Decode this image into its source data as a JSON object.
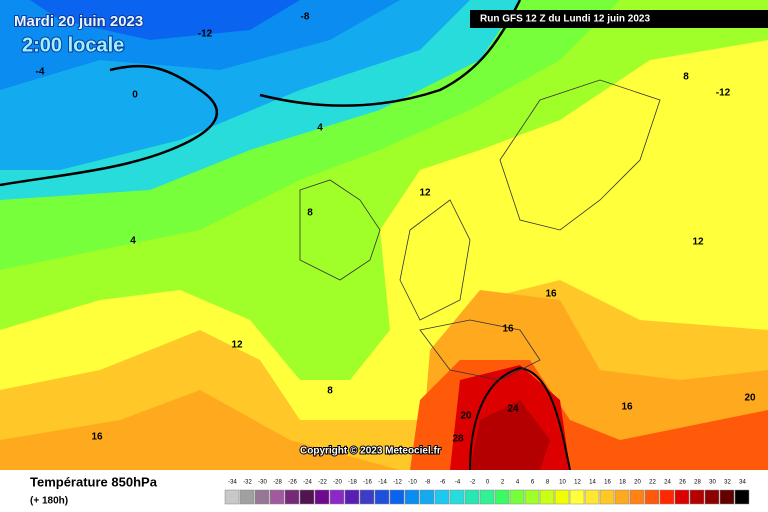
{
  "header": {
    "date": "Mardi 20 juin 2023",
    "time": "2:00 locale",
    "run": "Run GFS 12 Z du Lundi 12 juin 2023"
  },
  "copyright": "Copyright © 2023 Meteociel.fr",
  "footer": {
    "title": "Température 850hPa",
    "lead": "(+ 180h)"
  },
  "legend": {
    "values": [
      -34,
      -32,
      -30,
      -28,
      -26,
      -24,
      -22,
      -20,
      -18,
      -16,
      -14,
      -12,
      -10,
      -8,
      -6,
      -4,
      -2,
      0,
      2,
      4,
      6,
      8,
      10,
      12,
      14,
      16,
      18,
      20,
      22,
      24,
      26,
      28,
      30,
      32,
      34
    ],
    "colors": [
      "#c8c8c8",
      "#a0a0a0",
      "#967896",
      "#a05aa0",
      "#782878",
      "#501450",
      "#6e0a8c",
      "#8c28c8",
      "#5a1eb4",
      "#3c3cc8",
      "#1e50dc",
      "#0a64f0",
      "#0a8cf0",
      "#14aaf0",
      "#1ec8f0",
      "#28dcdc",
      "#28e6b4",
      "#32f096",
      "#3cfa64",
      "#78ff3c",
      "#a0ff28",
      "#c8ff14",
      "#f0ff00",
      "#ffff3c",
      "#ffe632",
      "#ffc828",
      "#ffaa1e",
      "#ff8214",
      "#ff5a0a",
      "#ff2800",
      "#dc0000",
      "#b40000",
      "#8c0000",
      "#640000",
      "#000000"
    ]
  },
  "contour_labels": [
    -12,
    -8,
    -4,
    0,
    4,
    8,
    12,
    12,
    16,
    16,
    20,
    24,
    28,
    16,
    12,
    8,
    -12,
    4,
    8,
    16,
    20
  ]
}
